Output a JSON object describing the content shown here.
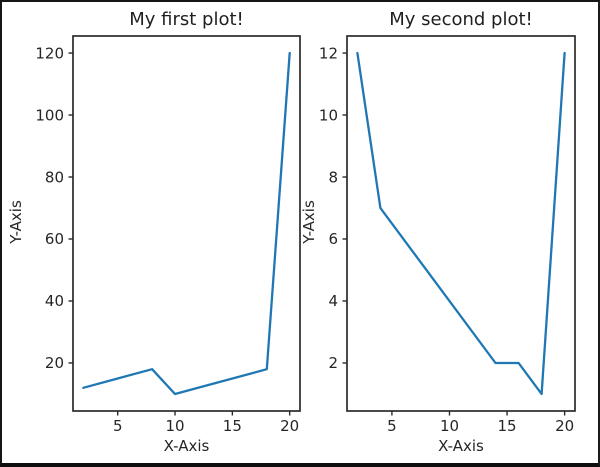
{
  "window": {
    "background": "#ffffff",
    "border_color": "#151515"
  },
  "colors": {
    "line": "#1f77b4",
    "spine": "#2a2a2a",
    "tick_text": "#262626",
    "title_text": "#1f1f1f"
  },
  "chart_data": [
    {
      "type": "line",
      "title": "My first plot!",
      "xlabel": "X-Axis",
      "ylabel": "Y-Axis",
      "x": [
        2,
        8,
        10,
        18,
        20
      ],
      "y": [
        12,
        18,
        10,
        18,
        120
      ],
      "x_ticks": [
        5,
        10,
        15,
        20
      ],
      "y_ticks": [
        20,
        40,
        60,
        80,
        100,
        120
      ],
      "xlim": [
        1.1,
        20.9
      ],
      "ylim": [
        4.5,
        125.5
      ],
      "grid": false,
      "legend": "none",
      "line_color": "#1f77b4"
    },
    {
      "type": "line",
      "title": "My second plot!",
      "xlabel": "X-Axis",
      "ylabel": "Y-Axis",
      "x": [
        2,
        4,
        14,
        16,
        18,
        20
      ],
      "y": [
        12,
        7,
        2,
        2,
        1,
        12
      ],
      "x_ticks": [
        5,
        10,
        15,
        20
      ],
      "y_ticks": [
        2,
        4,
        6,
        8,
        10,
        12
      ],
      "xlim": [
        1.1,
        20.9
      ],
      "ylim": [
        0.45,
        12.55
      ],
      "grid": false,
      "legend": "none",
      "line_color": "#1f77b4"
    }
  ]
}
